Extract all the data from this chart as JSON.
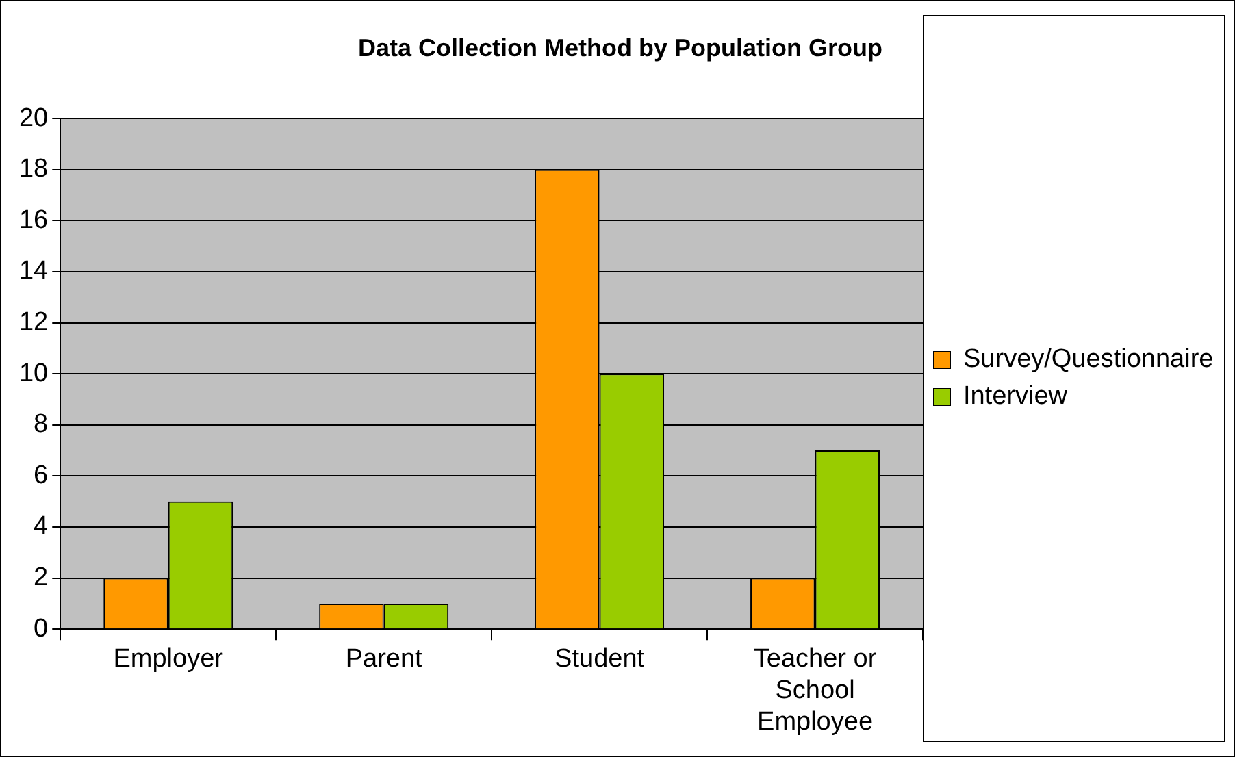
{
  "chart_data": {
    "type": "bar",
    "title": "Data Collection Method by Population Group",
    "categories": [
      "Employer",
      "Parent",
      "Student",
      "Teacher or School Employee"
    ],
    "series": [
      {
        "name": "Survey/Questionnaire",
        "color": "#ff9900",
        "values": [
          2,
          1,
          18,
          2
        ]
      },
      {
        "name": "Interview",
        "color": "#99cc00",
        "values": [
          5,
          1,
          10,
          7
        ]
      }
    ],
    "ylim": [
      0,
      20
    ],
    "yticks": [
      0,
      2,
      4,
      6,
      8,
      10,
      12,
      14,
      16,
      18,
      20
    ],
    "grid": "y",
    "legend": "right"
  }
}
